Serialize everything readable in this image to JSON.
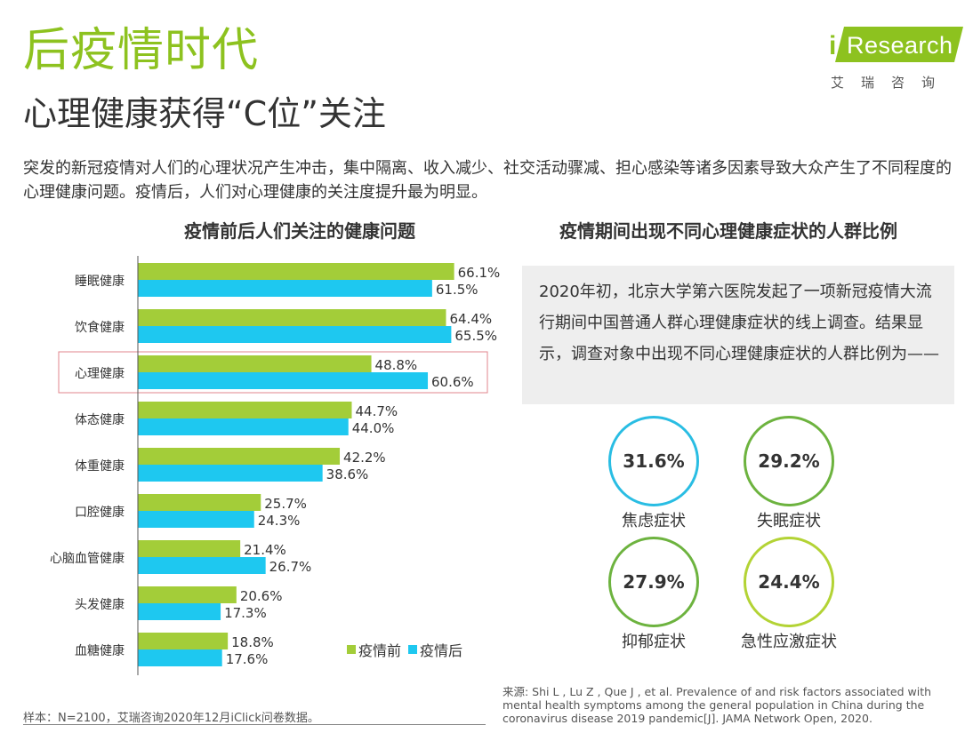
{
  "header": {
    "title": "后疫情时代",
    "subtitle": "心理健康获得“C位”关注"
  },
  "logo": {
    "brand_i": "i",
    "brand_rest": "Research",
    "brand_cn": "艾瑞咨询",
    "color": "#8dc21f"
  },
  "description": "突发的新冠疫情对人们的心理状况产生冲击，集中隔离、收入减少、社交活动骤减、担心感染等诸多因素导致大众产生了不同程度的心理健康问题。疫情后，人们对心理健康的关注度提升最为明显。",
  "left_panel": {
    "title": "疫情前后人们关注的健康问题"
  },
  "right_panel": {
    "title": "疫情期间出现不同心理健康症状的人群比例",
    "note": "2020年初，北京大学第六医院发起了一项新冠疫情大流行期间中国普通人群心理健康症状的线上调查。结果显示，调查对象中出现不同心理健康症状的人群比例为——",
    "symptoms": [
      {
        "label": "焦虑症状",
        "value": "31.6%",
        "color": "#29bde3"
      },
      {
        "label": "失眠症状",
        "value": "29.2%",
        "color": "#6db33f"
      },
      {
        "label": "抑郁症状",
        "value": "27.9%",
        "color": "#6db33f"
      },
      {
        "label": "急性应激症状",
        "value": "24.4%",
        "color": "#b3d335"
      }
    ]
  },
  "chart_data": [
    {
      "type": "bar",
      "orientation": "horizontal",
      "title": "疫情前后人们关注的健康问题",
      "categories": [
        "睡眠健康",
        "饮食健康",
        "心理健康",
        "体态健康",
        "体重健康",
        "口腔健康",
        "心脑血管健康",
        "头发健康",
        "血糖健康"
      ],
      "series": [
        {
          "name": "疫情前",
          "color": "#a3cd39",
          "values": [
            66.1,
            64.4,
            48.8,
            44.7,
            42.2,
            25.7,
            21.4,
            20.6,
            18.8
          ]
        },
        {
          "name": "疫情后",
          "color": "#1ec8f0",
          "values": [
            61.5,
            65.5,
            60.6,
            44.0,
            38.6,
            24.3,
            26.7,
            17.3,
            17.6
          ]
        }
      ],
      "unit": "%",
      "highlight_category": "心理健康",
      "highlight_color": "#e0868c",
      "legend_position": "bottom-right",
      "grid": false
    },
    {
      "type": "table",
      "title": "疫情期间出现不同心理健康症状的人群比例",
      "categories": [
        "焦虑症状",
        "失眠症状",
        "抑郁症状",
        "急性应激症状"
      ],
      "values": [
        31.6,
        29.2,
        27.9,
        24.4
      ],
      "unit": "%"
    }
  ],
  "footer": {
    "sample": "样本：N=2100，艾瑞咨询2020年12月iClick问卷数据。",
    "source": "来源: Shi L , Lu Z , Que J , et al. Prevalence of and risk factors associated with mental health symptoms among the general population in China during the coronavirus disease 2019 pandemic[J]. JAMA Network Open, 2020."
  }
}
